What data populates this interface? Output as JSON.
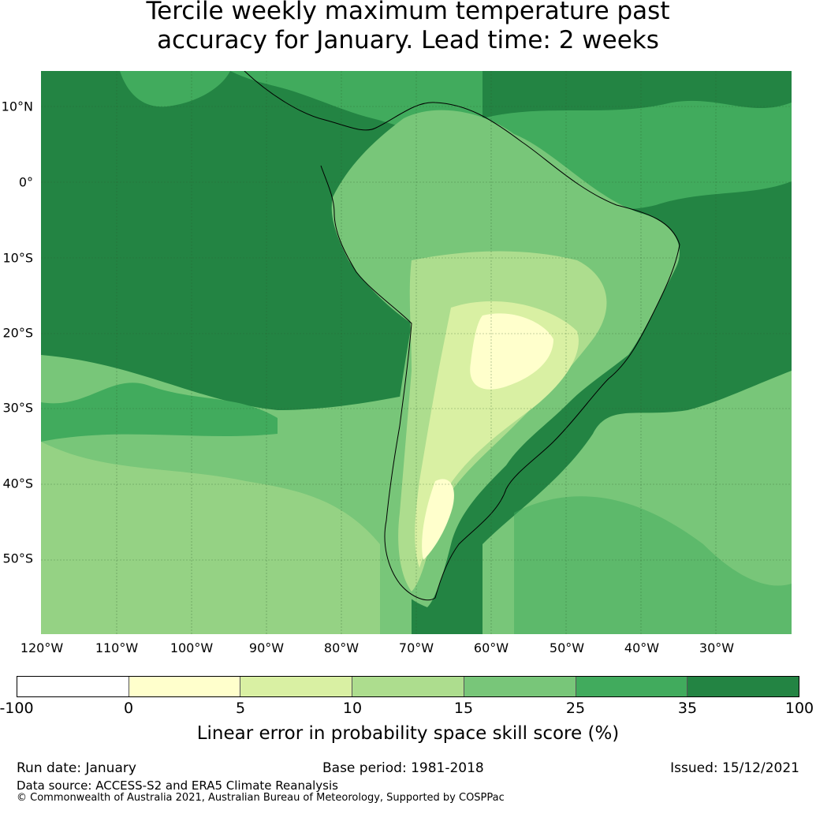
{
  "title_line1": "Tercile weekly maximum temperature past",
  "title_line2": "accuracy for January. Lead time: 2 weeks",
  "lat_labels": [
    "10°N",
    "0°",
    "10°S",
    "20°S",
    "30°S",
    "40°S",
    "50°S"
  ],
  "lon_labels": [
    "120°W",
    "110°W",
    "100°W",
    "90°W",
    "80°W",
    "70°W",
    "60°W",
    "50°W",
    "40°W",
    "30°W"
  ],
  "colorbar": {
    "ticks": [
      "-100",
      "0",
      "5",
      "10",
      "15",
      "25",
      "35",
      "100"
    ],
    "colors": [
      "#ffffff",
      "#ffffcc",
      "#d9f0a3",
      "#addd8e",
      "#78c679",
      "#41ab5d",
      "#238443"
    ],
    "label": "Linear error in probability space skill score (%)"
  },
  "footer": {
    "run_date": "Run date: January",
    "base_period": "Base period: 1981-2018",
    "issued": "Issued: 15/12/2021",
    "data_source": "Data source: ACCESS-S2 and ERA5 Climate Reanalysis",
    "copyright": "© Commonwealth of Australia 2021, Australian Bureau of Meteorology, Supported by COSPPac"
  }
}
